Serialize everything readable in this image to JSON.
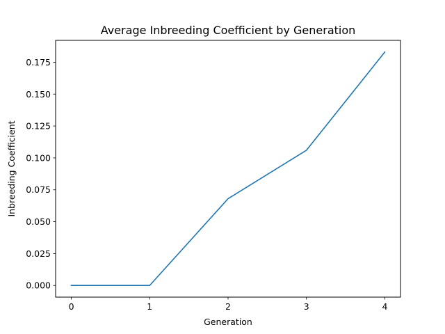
{
  "chart_data": {
    "type": "line",
    "title": "Average Inbreeding Coefficient by Generation",
    "xlabel": "Generation",
    "ylabel": "Inbreeding Coefficient",
    "x": [
      0,
      1,
      2,
      3,
      4
    ],
    "series": [
      {
        "values": [
          0.0,
          0.0,
          0.068,
          0.106,
          0.183
        ],
        "color": "#1f77b4"
      }
    ],
    "xticks": [
      0,
      1,
      2,
      3,
      4
    ],
    "xtick_labels": [
      "0",
      "1",
      "2",
      "3",
      "4"
    ],
    "yticks": [
      0.0,
      0.025,
      0.05,
      0.075,
      0.1,
      0.125,
      0.15,
      0.175
    ],
    "ytick_labels": [
      "0.000",
      "0.025",
      "0.050",
      "0.075",
      "0.100",
      "0.125",
      "0.150",
      "0.175"
    ],
    "xlim": [
      -0.2,
      4.2
    ],
    "ylim": [
      -0.00915,
      0.19215
    ],
    "grid": false,
    "legend": "none"
  }
}
